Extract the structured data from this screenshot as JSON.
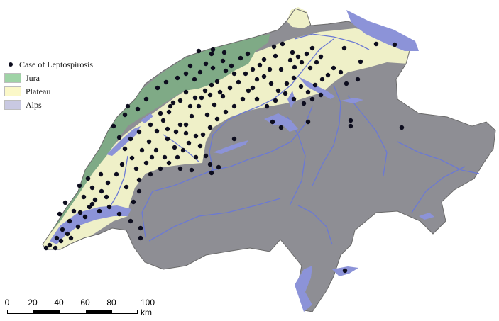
{
  "legend": {
    "items": [
      {
        "label": "Case of Leptospirosis",
        "kind": "dot",
        "color": "#0d0d1e"
      },
      {
        "label": "Jura",
        "kind": "swatch",
        "color": "#9fd3a6"
      },
      {
        "label": "Plateau",
        "kind": "swatch",
        "color": "#fbf8c8"
      },
      {
        "label": "Alps",
        "kind": "swatch",
        "color": "#c9c9e2"
      }
    ]
  },
  "colors": {
    "jura": "#7faa86",
    "plateau": "#eff0c8",
    "alps": "#8e8e94",
    "lakes": "#8c93d8",
    "rivers": "#6b79d4",
    "border": "#6a6a6a",
    "case": "#0d0d1e"
  },
  "scale_bar": {
    "ticks": [
      "0",
      "20",
      "40",
      "60",
      "80",
      "100 km"
    ]
  }
}
